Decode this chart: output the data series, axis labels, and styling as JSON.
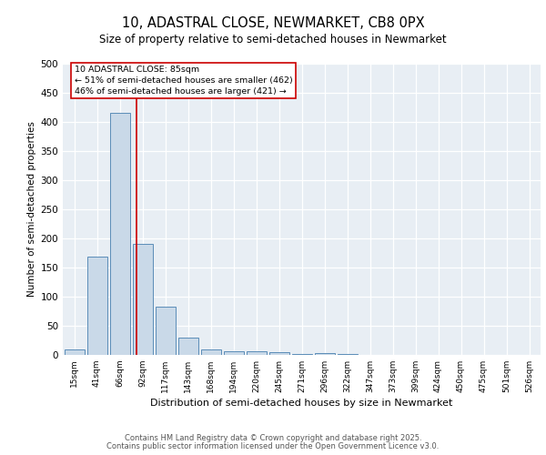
{
  "title": "10, ADASTRAL CLOSE, NEWMARKET, CB8 0PX",
  "subtitle": "Size of property relative to semi-detached houses in Newmarket",
  "xlabel": "Distribution of semi-detached houses by size in Newmarket",
  "ylabel": "Number of semi-detached properties",
  "bin_labels": [
    "15sqm",
    "41sqm",
    "66sqm",
    "92sqm",
    "117sqm",
    "143sqm",
    "168sqm",
    "194sqm",
    "220sqm",
    "245sqm",
    "271sqm",
    "296sqm",
    "322sqm",
    "347sqm",
    "373sqm",
    "399sqm",
    "424sqm",
    "450sqm",
    "475sqm",
    "501sqm",
    "526sqm"
  ],
  "bar_heights": [
    9,
    168,
    415,
    190,
    83,
    30,
    9,
    7,
    6,
    4,
    2,
    3,
    2,
    0,
    0,
    0,
    0,
    0,
    0,
    0,
    0
  ],
  "bar_color": "#c9d9e8",
  "bar_edge_color": "#5b8db8",
  "red_line_x": 2.73,
  "red_line_color": "#cc0000",
  "annotation_text": "10 ADASTRAL CLOSE: 85sqm\n← 51% of semi-detached houses are smaller (462)\n46% of semi-detached houses are larger (421) →",
  "annotation_box_color": "#ffffff",
  "annotation_box_edge": "#cc0000",
  "ylim": [
    0,
    500
  ],
  "yticks": [
    0,
    50,
    100,
    150,
    200,
    250,
    300,
    350,
    400,
    450,
    500
  ],
  "background_color": "#e8eef4",
  "footer1": "Contains HM Land Registry data © Crown copyright and database right 2025.",
  "footer2": "Contains public sector information licensed under the Open Government Licence v3.0."
}
